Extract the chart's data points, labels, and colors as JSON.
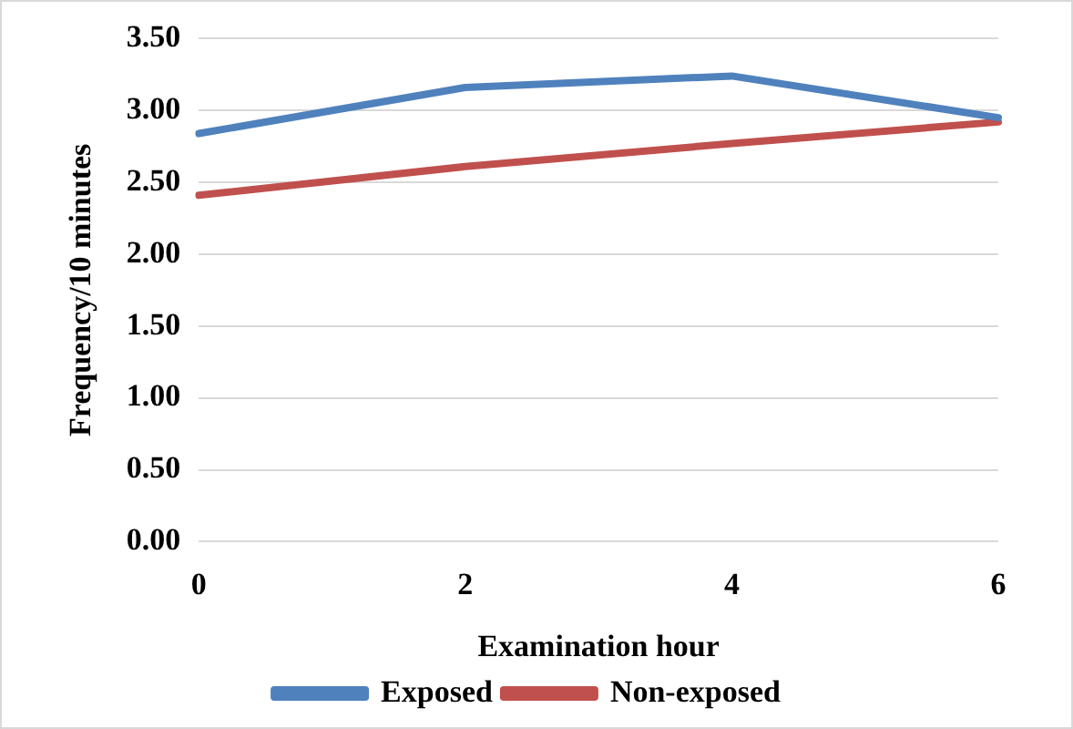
{
  "chart_data": {
    "type": "line",
    "xlabel": "Examination hour",
    "ylabel": "Frequency/10 minutes",
    "categories": [
      "0",
      "2",
      "4",
      "6"
    ],
    "series": [
      {
        "name": "Exposed",
        "color": "#4f81bd",
        "values": [
          2.84,
          3.16,
          3.24,
          2.95
        ]
      },
      {
        "name": "Non-exposed",
        "color": "#c0504d",
        "values": [
          2.41,
          2.61,
          2.77,
          2.92
        ]
      }
    ],
    "ylim": [
      0,
      3.5
    ],
    "yticks": [
      {
        "value": 0,
        "label": "0.00"
      },
      {
        "value": 0.5,
        "label": "0.50"
      },
      {
        "value": 1,
        "label": "1.00"
      },
      {
        "value": 1.5,
        "label": "1.50"
      },
      {
        "value": 2,
        "label": "2.00"
      },
      {
        "value": 2.5,
        "label": "2.50"
      },
      {
        "value": 3,
        "label": "3.00"
      },
      {
        "value": 3.5,
        "label": "3.50"
      }
    ],
    "grid": "y",
    "legend": "bottom",
    "marker": "none",
    "line_style": "solid"
  }
}
